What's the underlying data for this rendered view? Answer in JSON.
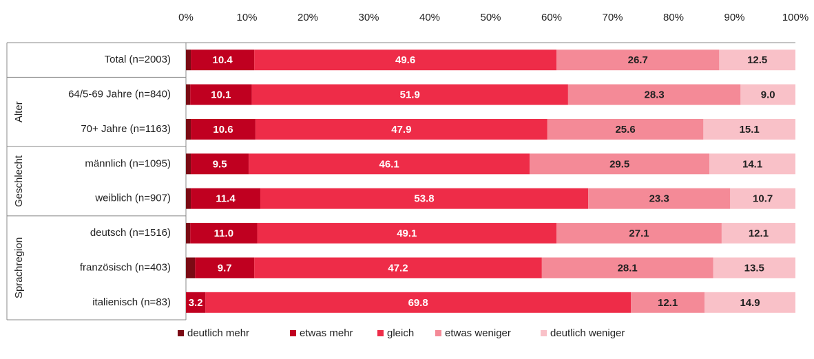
{
  "chart_data": {
    "type": "stacked_barh",
    "categories": [
      "Total (n=2003)",
      "64/5-69 Jahre (n=840)",
      "70+ Jahre (n=1163)",
      "männlich (n=1095)",
      "weiblich (n=907)",
      "deutsch (n=1516)",
      "französisch (n=403)",
      "italienisch (n=83)"
    ],
    "groups": [
      {
        "name": "Alter",
        "rows": [
          1,
          2
        ]
      },
      {
        "name": "Geschlecht",
        "rows": [
          3,
          4
        ]
      },
      {
        "name": "Sprachregion",
        "rows": [
          5,
          6,
          7
        ]
      }
    ],
    "xlim": [
      0,
      100
    ],
    "xticks": [
      {
        "value": 0,
        "label": "0%"
      },
      {
        "value": 10,
        "label": "10%"
      },
      {
        "value": 20,
        "label": "20%"
      },
      {
        "value": 30,
        "label": "30%"
      },
      {
        "value": 40,
        "label": "40%"
      },
      {
        "value": 50,
        "label": "50%"
      },
      {
        "value": 60,
        "label": "60%"
      },
      {
        "value": 70,
        "label": "70%"
      },
      {
        "value": 80,
        "label": "80%"
      },
      {
        "value": 90,
        "label": "90%"
      },
      {
        "value": 100,
        "label": "100%"
      }
    ],
    "series": [
      {
        "name": "deutlich mehr",
        "color": "#7a0a14",
        "values": [
          0.8,
          0.7,
          0.8,
          0.8,
          0.8,
          0.7,
          1.5,
          0
        ]
      },
      {
        "name": "etwas mehr",
        "color": "#c00020",
        "label_color": "#ffffff",
        "values": [
          10.4,
          10.1,
          10.6,
          9.5,
          11.4,
          11.0,
          9.7,
          3.2
        ],
        "value_labels": [
          "10.4",
          "10.1",
          "10.6",
          "9.5",
          "11.4",
          "11.0",
          "9.7",
          "3.2"
        ]
      },
      {
        "name": "gleich",
        "color": "#ee2c48",
        "label_color": "#ffffff",
        "values": [
          49.6,
          51.9,
          47.9,
          46.1,
          53.8,
          49.1,
          47.2,
          69.8
        ],
        "value_labels": [
          "49.6",
          "51.9",
          "47.9",
          "46.1",
          "53.8",
          "49.1",
          "47.2",
          "69.8"
        ]
      },
      {
        "name": "etwas weniger",
        "color": "#f48a97",
        "label_color": "#222222",
        "values": [
          26.7,
          28.3,
          25.6,
          29.5,
          23.3,
          27.1,
          28.1,
          12.1
        ],
        "value_labels": [
          "26.7",
          "28.3",
          "25.6",
          "29.5",
          "23.3",
          "27.1",
          "28.1",
          "12.1"
        ]
      },
      {
        "name": "deutlich weniger",
        "color": "#f9c1c8",
        "label_color": "#222222",
        "values": [
          12.5,
          9.0,
          15.1,
          14.1,
          10.7,
          12.1,
          13.5,
          14.9
        ],
        "value_labels": [
          "12.5",
          "9.0",
          "15.1",
          "14.1",
          "10.7",
          "12.1",
          "13.5",
          "14.9"
        ]
      }
    ]
  }
}
